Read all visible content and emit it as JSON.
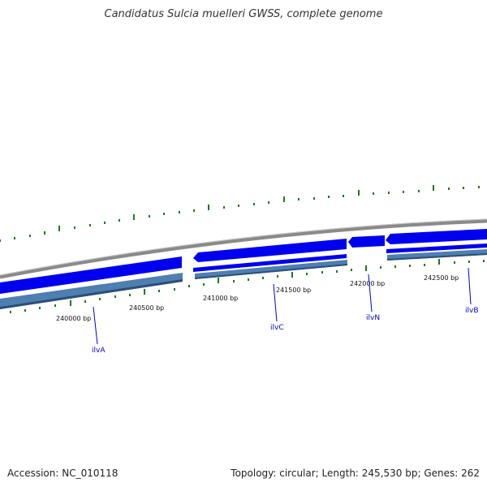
{
  "title": "Candidatus Sulcia muelleri GWSS, complete genome",
  "footer": {
    "accession": "Accession: NC_010118",
    "summary": "Topology: circular; Length: 245,530 bp; Genes: 262"
  },
  "colors": {
    "backbone": "#8a8a8a",
    "forward_gene": "#0000ee",
    "reverse_gene": "#4f7fb0",
    "tick": "#1a7a1a",
    "label": "#0000cc"
  },
  "scale_labels": [
    "240000 bp",
    "240500 bp",
    "241000 bp",
    "241500 bp",
    "242000 bp",
    "242500 bp"
  ],
  "genes": [
    {
      "name": "ilvA"
    },
    {
      "name": "ilvC"
    },
    {
      "name": "ilvN"
    },
    {
      "name": "ilvB"
    }
  ]
}
